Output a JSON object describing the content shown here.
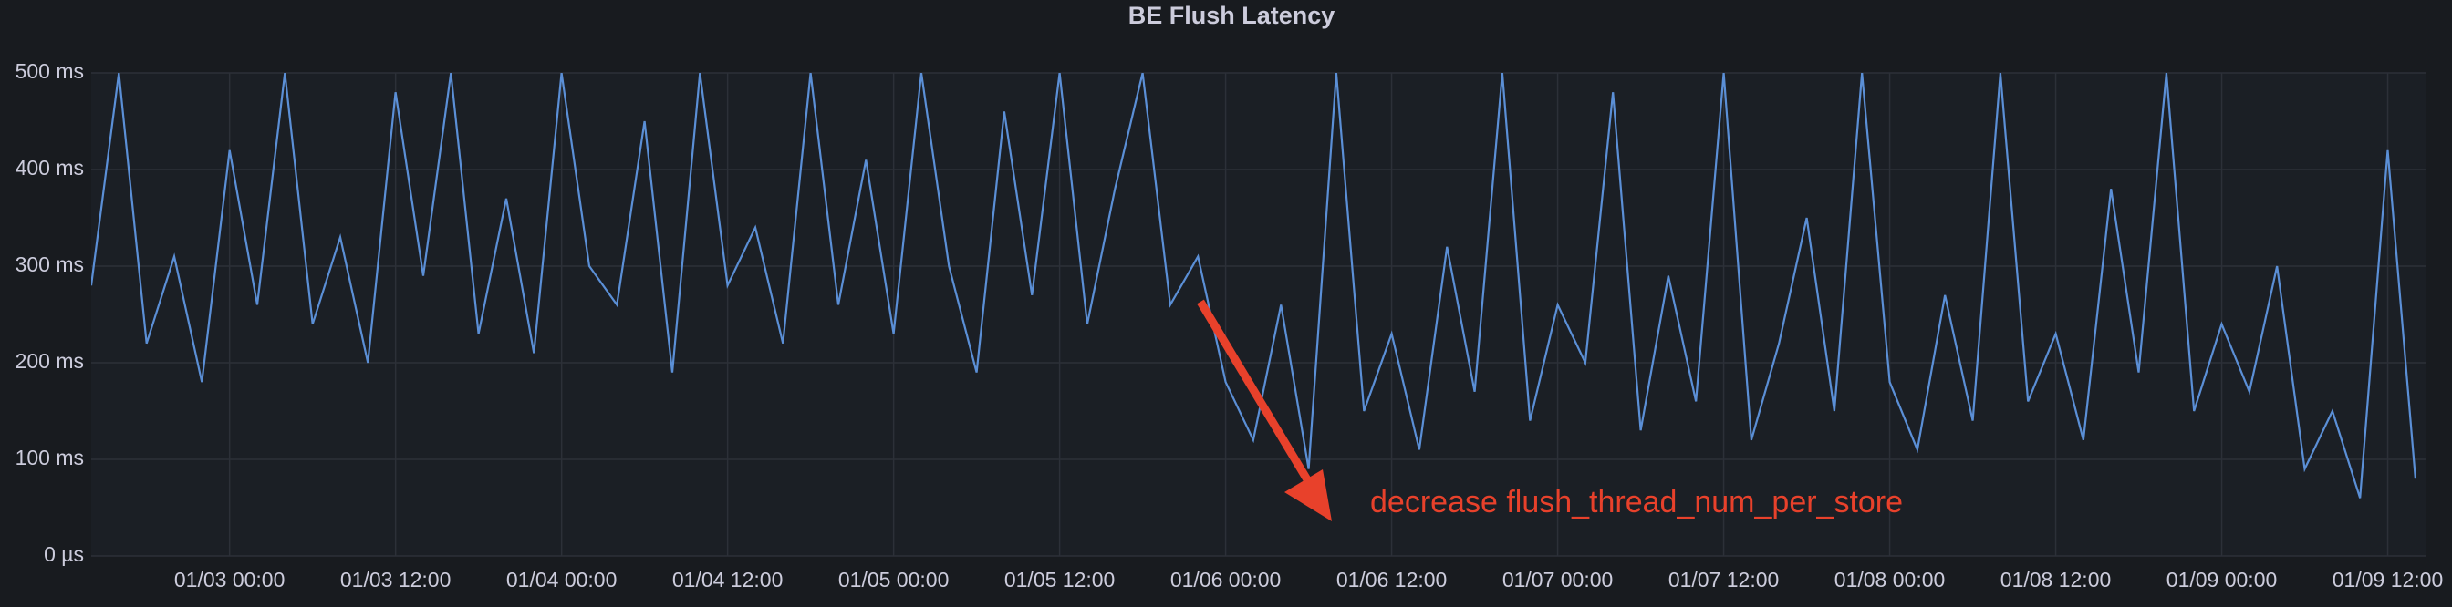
{
  "chart_data": {
    "type": "line",
    "title": "BE Flush Latency",
    "x": [
      "01/02 14:00",
      "01/02 16:00",
      "01/02 18:00",
      "01/02 20:00",
      "01/02 22:00",
      "01/03 00:00",
      "01/03 02:00",
      "01/03 04:00",
      "01/03 06:00",
      "01/03 08:00",
      "01/03 10:00",
      "01/03 12:00",
      "01/03 14:00",
      "01/03 16:00",
      "01/03 18:00",
      "01/03 20:00",
      "01/03 22:00",
      "01/04 00:00",
      "01/04 02:00",
      "01/04 04:00",
      "01/04 06:00",
      "01/04 08:00",
      "01/04 10:00",
      "01/04 12:00",
      "01/04 14:00",
      "01/04 16:00",
      "01/04 18:00",
      "01/04 20:00",
      "01/04 22:00",
      "01/05 00:00",
      "01/05 02:00",
      "01/05 04:00",
      "01/05 06:00",
      "01/05 08:00",
      "01/05 10:00",
      "01/05 12:00",
      "01/05 14:00",
      "01/05 16:00",
      "01/05 18:00",
      "01/05 20:00",
      "01/05 22:00",
      "01/06 00:00",
      "01/06 02:00",
      "01/06 04:00",
      "01/06 06:00",
      "01/06 08:00",
      "01/06 10:00",
      "01/06 12:00",
      "01/06 14:00",
      "01/06 16:00",
      "01/06 18:00",
      "01/06 20:00",
      "01/06 22:00",
      "01/07 00:00",
      "01/07 02:00",
      "01/07 04:00",
      "01/07 06:00",
      "01/07 08:00",
      "01/07 10:00",
      "01/07 12:00",
      "01/07 14:00",
      "01/07 16:00",
      "01/07 18:00",
      "01/07 20:00",
      "01/07 22:00",
      "01/08 00:00",
      "01/08 02:00",
      "01/08 04:00",
      "01/08 06:00",
      "01/08 08:00",
      "01/08 10:00",
      "01/08 12:00",
      "01/08 14:00",
      "01/08 16:00",
      "01/08 18:00",
      "01/08 20:00",
      "01/08 22:00",
      "01/09 00:00",
      "01/09 02:00",
      "01/09 04:00",
      "01/09 06:00",
      "01/09 08:00",
      "01/09 10:00",
      "01/09 12:00",
      "01/09 14:00"
    ],
    "series": [
      {
        "color": "#5b8fd6",
        "values": [
          280,
          500,
          220,
          310,
          180,
          420,
          260,
          500,
          240,
          330,
          200,
          480,
          290,
          500,
          230,
          370,
          210,
          500,
          300,
          260,
          450,
          190,
          500,
          280,
          340,
          220,
          500,
          260,
          410,
          230,
          500,
          300,
          190,
          460,
          270,
          500,
          240,
          380,
          500,
          260,
          310,
          180,
          120,
          260,
          90,
          500,
          150,
          230,
          110,
          320,
          170,
          500,
          140,
          260,
          200,
          480,
          130,
          290,
          160,
          500,
          120,
          220,
          350,
          150,
          500,
          180,
          110,
          270,
          140,
          500,
          160,
          230,
          120,
          380,
          190,
          500,
          150,
          240,
          170,
          300,
          90,
          150,
          60,
          420,
          80
        ]
      }
    ],
    "xlim": [
      "01/02 14:00",
      "01/09 14:48"
    ],
    "xticks": [
      "01/03 00:00",
      "01/03 12:00",
      "01/04 00:00",
      "01/04 12:00",
      "01/05 00:00",
      "01/05 12:00",
      "01/06 00:00",
      "01/06 12:00",
      "01/07 00:00",
      "01/07 12:00",
      "01/08 00:00",
      "01/08 12:00",
      "01/09 00:00",
      "01/09 12:00"
    ],
    "ylim": [
      0,
      500
    ],
    "yticks": [
      {
        "value": 0,
        "label": "0 µs"
      },
      {
        "value": 100,
        "label": "100 ms"
      },
      {
        "value": 200,
        "label": "200 ms"
      },
      {
        "value": 300,
        "label": "300 ms"
      },
      {
        "value": 400,
        "label": "400 ms"
      },
      {
        "value": 500,
        "label": "500 ms"
      }
    ],
    "grid": true,
    "annotation": "decrease flush_thread_num_per_store"
  }
}
